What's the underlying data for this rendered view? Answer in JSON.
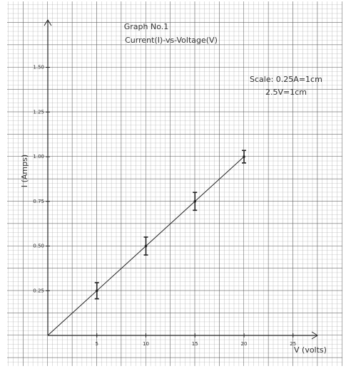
{
  "chart_data": {
    "type": "errorbar",
    "title": "Graph No.1",
    "subtitle": "Current(I)-vs-Voltage(V)",
    "annotations": [
      "Scale: 0.25A=1cm",
      "2.5V=1cm"
    ],
    "x_label": "V (volts)",
    "y_label": "I (Amps)",
    "color": "#222",
    "series": [
      {
        "x": [
          5,
          10,
          15,
          20
        ],
        "values": [
          0.25,
          0.5,
          0.75,
          1.0
        ],
        "errors": [
          0.045,
          0.05,
          0.05,
          0.035
        ]
      }
    ],
    "fit_line": {
      "x": [
        0,
        20
      ],
      "values": [
        0,
        1.0
      ]
    },
    "xlim": [
      0,
      27
    ],
    "ylim": [
      0,
      1.75
    ],
    "xticks": [
      5,
      10,
      15,
      20,
      25
    ],
    "yticks": [
      {
        "value": 0.25,
        "label": "0.25"
      },
      {
        "value": 0.5,
        "label": "0.50"
      },
      {
        "value": 0.75,
        "label": "0.75"
      },
      {
        "value": 1.0,
        "label": "1.00"
      },
      {
        "value": 1.25,
        "label": "1.25"
      },
      {
        "value": 1.5,
        "label": "1.50"
      }
    ]
  }
}
